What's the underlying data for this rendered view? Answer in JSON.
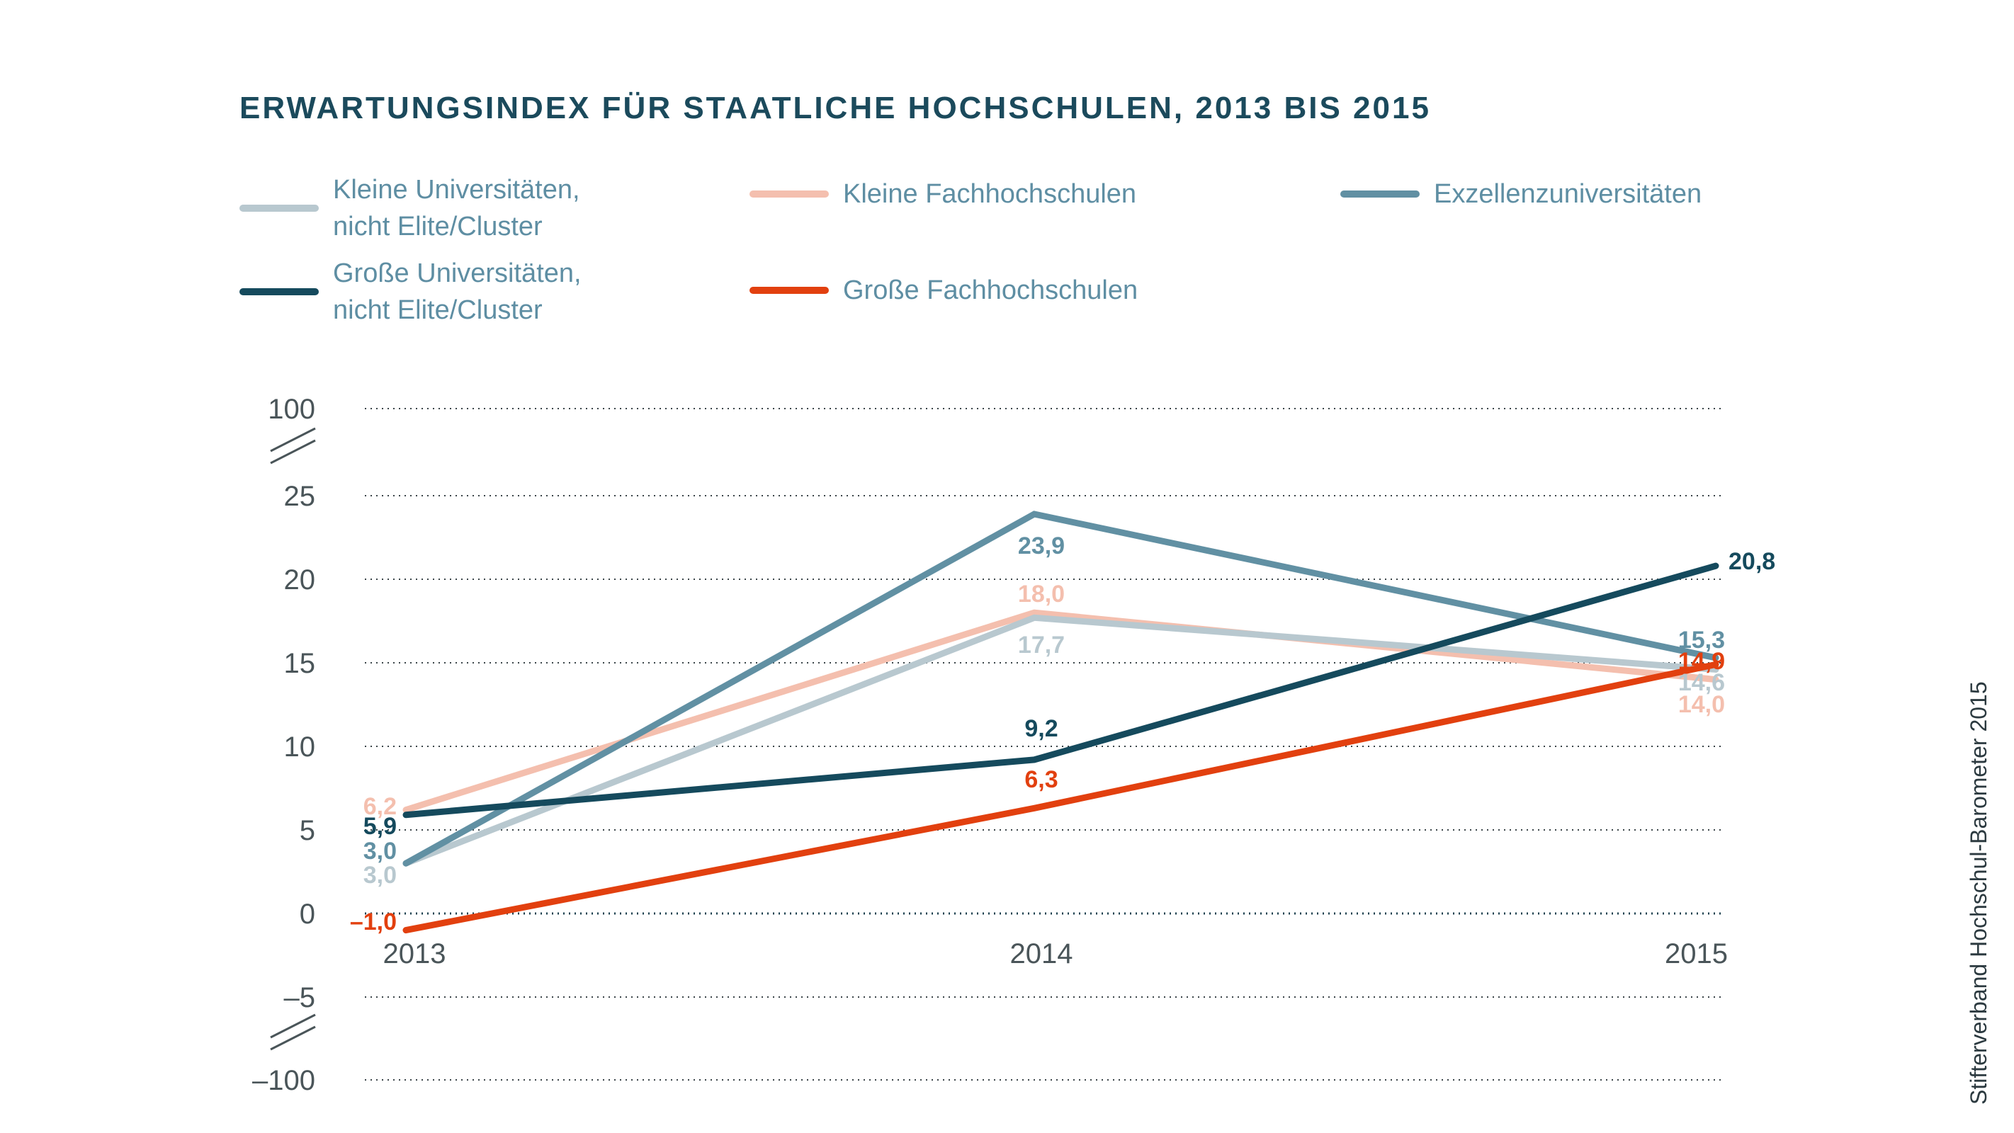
{
  "chart_data": {
    "type": "line",
    "title": "ERWARTUNGSINDEX FÜR STAATLICHE HOCHSCHULEN, 2013 BIS 2015",
    "x": [
      "2013",
      "2014",
      "2015"
    ],
    "xlabel": "",
    "ylabel": "",
    "ylim": [
      -5,
      25
    ],
    "y_ticks": [
      "100",
      "25",
      "20",
      "15",
      "10",
      "5",
      "0",
      "–5",
      "–100"
    ],
    "axis_breaks": [
      "between 100 and 25",
      "between –5 and –100"
    ],
    "grid": true,
    "legend_position": "top",
    "series": [
      {
        "name": "Kleine Universitäten,\nnicht Elite/Cluster",
        "color": "#b8c8cf",
        "values": [
          3.0,
          17.7,
          14.6
        ],
        "labels": [
          "3,0",
          "17,7",
          "14,6"
        ]
      },
      {
        "name": "Große Universitäten,\nnicht Elite/Cluster",
        "color": "#154a5d",
        "values": [
          5.9,
          9.2,
          20.8
        ],
        "labels": [
          "5,9",
          "9,2",
          "20,8"
        ]
      },
      {
        "name": "Kleine Fachhochschulen",
        "color": "#f4bfae",
        "values": [
          6.2,
          18.0,
          14.0
        ],
        "labels": [
          "6,2",
          "18,0",
          "14,0"
        ]
      },
      {
        "name": "Große Fachhochschulen",
        "color": "#e2400f",
        "values": [
          -1.0,
          6.3,
          14.9
        ],
        "labels": [
          "–1,0",
          "6,3",
          "14,9"
        ]
      },
      {
        "name": "Exzellenzuniversitäten",
        "color": "#6190a3",
        "values": [
          3.0,
          23.9,
          15.3
        ],
        "labels": [
          "3,0",
          "23,9",
          "15,3"
        ]
      }
    ]
  },
  "source": "Stifterverband Hochschul-Barometer 2015"
}
